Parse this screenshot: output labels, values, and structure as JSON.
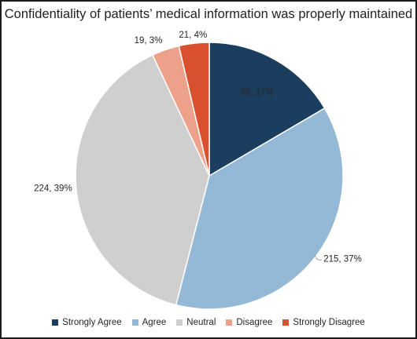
{
  "chart_data": {
    "type": "pie",
    "title": "Confidentiality of patients’ medical information was properly maintained",
    "categories": [
      "Strongly Agree",
      "Agree",
      "Neutral",
      "Disagree",
      "Strongly Disagree"
    ],
    "values": [
      95,
      215,
      224,
      19,
      21
    ],
    "labels": [
      "95, 17%",
      "215, 37%",
      "224, 39%",
      "19, 3%",
      "21, 4%"
    ],
    "colors": [
      "#1b3e5f",
      "#94b9d6",
      "#cfcfcf",
      "#eda08a",
      "#d9512f"
    ],
    "legend_position": "bottom"
  }
}
